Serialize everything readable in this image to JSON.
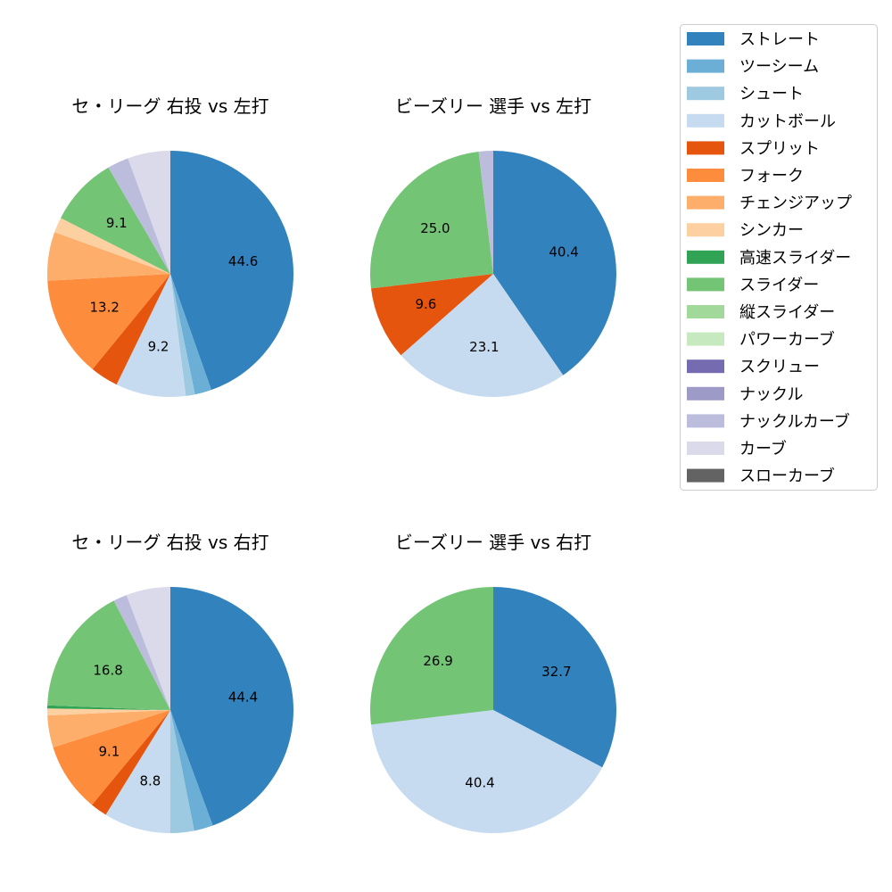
{
  "chart_data": {
    "type": "pie",
    "legend": {
      "placement": "top-right",
      "entries": [
        {
          "name": "ストレート",
          "color": "#3182bd"
        },
        {
          "name": "ツーシーム",
          "color": "#6baed6"
        },
        {
          "name": "シュート",
          "color": "#9ecae1"
        },
        {
          "name": "カットボール",
          "color": "#c6dbef"
        },
        {
          "name": "スプリット",
          "color": "#e6550d"
        },
        {
          "name": "フォーク",
          "color": "#fd8d3c"
        },
        {
          "name": "チェンジアップ",
          "color": "#fdae6b"
        },
        {
          "name": "シンカー",
          "color": "#fdd0a2"
        },
        {
          "name": "高速スライダー",
          "color": "#31a354"
        },
        {
          "name": "スライダー",
          "color": "#74c476"
        },
        {
          "name": "縦スライダー",
          "color": "#a1d99b"
        },
        {
          "name": "パワーカーブ",
          "color": "#c7e9c0"
        },
        {
          "name": "スクリュー",
          "color": "#756bb1"
        },
        {
          "name": "ナックル",
          "color": "#9e9ac8"
        },
        {
          "name": "ナックルカーブ",
          "color": "#bcbddc"
        },
        {
          "name": "カーブ",
          "color": "#dadaeb"
        },
        {
          "name": "スローカーブ",
          "color": "#636363"
        }
      ]
    },
    "pies": [
      {
        "title": "セ・リーグ 右投 vs 左打",
        "slices": [
          {
            "pitch": "ストレート",
            "value": 44.6,
            "label": "44.6"
          },
          {
            "pitch": "ツーシーム",
            "value": 2.2
          },
          {
            "pitch": "シュート",
            "value": 1.2
          },
          {
            "pitch": "カットボール",
            "value": 9.2,
            "label": "9.2"
          },
          {
            "pitch": "スプリット",
            "value": 3.7
          },
          {
            "pitch": "フォーク",
            "value": 13.2,
            "label": "13.2"
          },
          {
            "pitch": "チェンジアップ",
            "value": 6.4
          },
          {
            "pitch": "シンカー",
            "value": 2.0
          },
          {
            "pitch": "スライダー",
            "value": 9.1,
            "label": "9.1"
          },
          {
            "pitch": "ナックルカーブ",
            "value": 2.8
          },
          {
            "pitch": "カーブ",
            "value": 5.6
          }
        ]
      },
      {
        "title": "ビーズリー 選手 vs 左打",
        "slices": [
          {
            "pitch": "ストレート",
            "value": 40.4,
            "label": "40.4"
          },
          {
            "pitch": "カットボール",
            "value": 23.1,
            "label": "23.1"
          },
          {
            "pitch": "スプリット",
            "value": 9.6,
            "label": "9.6"
          },
          {
            "pitch": "スライダー",
            "value": 25.0,
            "label": "25.0"
          },
          {
            "pitch": "ナックルカーブ",
            "value": 1.9
          }
        ]
      },
      {
        "title": "セ・リーグ 右投 vs 右打",
        "slices": [
          {
            "pitch": "ストレート",
            "value": 44.4,
            "label": "44.4"
          },
          {
            "pitch": "ツーシーム",
            "value": 2.5
          },
          {
            "pitch": "シュート",
            "value": 3.1
          },
          {
            "pitch": "カットボール",
            "value": 8.8,
            "label": "8.8"
          },
          {
            "pitch": "スプリット",
            "value": 2.2
          },
          {
            "pitch": "フォーク",
            "value": 9.1,
            "label": "9.1"
          },
          {
            "pitch": "チェンジアップ",
            "value": 4.2
          },
          {
            "pitch": "シンカー",
            "value": 0.9
          },
          {
            "pitch": "高速スライダー",
            "value": 0.4
          },
          {
            "pitch": "スライダー",
            "value": 16.8,
            "label": "16.8"
          },
          {
            "pitch": "ナックルカーブ",
            "value": 1.8
          },
          {
            "pitch": "カーブ",
            "value": 5.8
          }
        ]
      },
      {
        "title": "ビーズリー 選手 vs 右打",
        "slices": [
          {
            "pitch": "ストレート",
            "value": 32.7,
            "label": "32.7"
          },
          {
            "pitch": "カットボール",
            "value": 40.4,
            "label": "40.4"
          },
          {
            "pitch": "スライダー",
            "value": 26.9,
            "label": "26.9"
          }
        ]
      }
    ]
  }
}
